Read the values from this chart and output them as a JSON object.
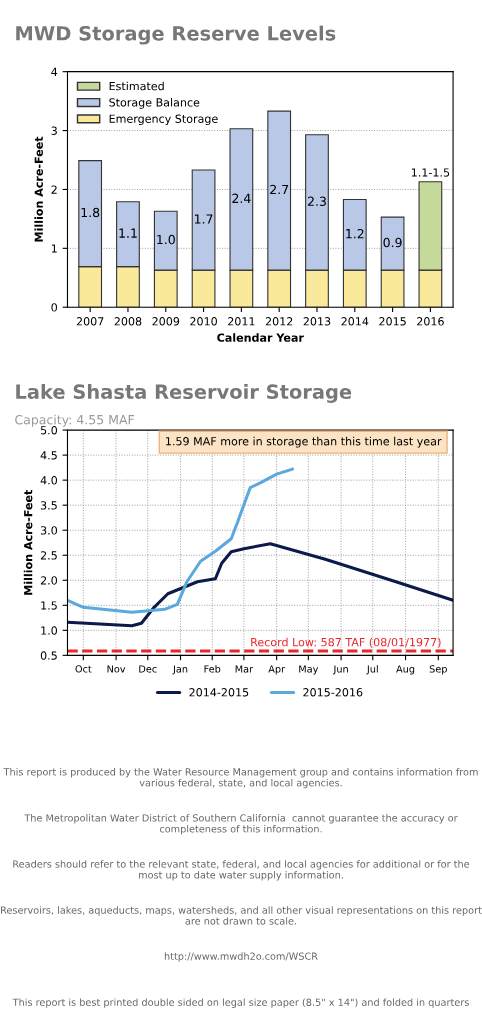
{
  "chart_data": [
    {
      "type": "bar",
      "title": "MWD Storage Reserve Levels",
      "xlabel": "Calendar Year",
      "ylabel": "Million Acre-Feet",
      "stacked": true,
      "categories": [
        "2007",
        "2008",
        "2009",
        "2010",
        "2011",
        "2012",
        "2013",
        "2014",
        "2015",
        "2016"
      ],
      "series": [
        {
          "name": "Emergency Storage",
          "color": "#fbe99b",
          "values": [
            0.69,
            0.69,
            0.63,
            0.63,
            0.63,
            0.63,
            0.63,
            0.63,
            0.63,
            0.63
          ]
        },
        {
          "name": "Storage Balance",
          "color": "#b8c8e6",
          "values": [
            1.8,
            1.1,
            1.0,
            1.7,
            2.4,
            2.7,
            2.3,
            1.2,
            0.9,
            null
          ],
          "value_labels": [
            "1.8",
            "1.1",
            "1.0",
            "1.7",
            "2.4",
            "2.7",
            "2.3",
            "1.2",
            "0.9",
            null
          ]
        },
        {
          "name": "Estimated",
          "color": "#c4d99a",
          "values": [
            null,
            null,
            null,
            null,
            null,
            null,
            null,
            null,
            null,
            1.5
          ],
          "value_labels": [
            null,
            null,
            null,
            null,
            null,
            null,
            null,
            null,
            null,
            "1.1-1.5"
          ]
        }
      ],
      "ylim": [
        0,
        4
      ],
      "yticks": [
        0,
        1,
        2,
        3,
        4
      ],
      "grid": "y",
      "legend": "top left"
    },
    {
      "type": "line",
      "title": "Lake Shasta Reservoir Storage",
      "subtitle": "Capacity: 4.55 MAF",
      "ylabel": "Million Acre-Feet",
      "annotations": [
        "1.59 MAF more in storage than this time last year"
      ],
      "series": [
        {
          "name": "2014-2015",
          "color": "#0b1a4a",
          "x": [
            "2015-10-01",
            "2015-12-01",
            "2015-12-10",
            "2015-12-22",
            "2016-01-04",
            "2016-02-01",
            "2016-02-18",
            "2016-02-24",
            "2016-03-04",
            "2016-03-16",
            "2016-04-10",
            "2016-06-01",
            "2016-08-01",
            "2016-09-30"
          ],
          "values": [
            1.16,
            1.09,
            1.14,
            1.46,
            1.73,
            1.97,
            2.03,
            2.34,
            2.57,
            2.63,
            2.73,
            2.42,
            2.01,
            1.6
          ]
        },
        {
          "name": "2015-2016",
          "color": "#5aa8dc",
          "x": [
            "2015-10-01",
            "2015-10-16",
            "2015-12-01",
            "2016-01-01",
            "2016-01-13",
            "2016-01-22",
            "2016-02-04",
            "2016-02-18",
            "2016-03-04",
            "2016-03-10",
            "2016-03-16",
            "2016-03-22",
            "2016-04-01",
            "2016-04-16",
            "2016-05-01"
          ],
          "values": [
            1.6,
            1.46,
            1.36,
            1.42,
            1.52,
            1.97,
            2.38,
            2.58,
            2.83,
            3.16,
            3.51,
            3.85,
            3.95,
            4.12,
            4.22
          ]
        }
      ],
      "xlim": [
        "2015-10-01",
        "2016-09-30"
      ],
      "xticks": [
        {
          "value": "2015-10-16",
          "label": "Oct"
        },
        {
          "value": "2015-11-16",
          "label": "Nov"
        },
        {
          "value": "2015-12-16",
          "label": "Dec"
        },
        {
          "value": "2016-01-16",
          "label": "Jan"
        },
        {
          "value": "2016-02-15",
          "label": "Feb"
        },
        {
          "value": "2016-03-16",
          "label": "Mar"
        },
        {
          "value": "2016-04-16",
          "label": "Apr"
        },
        {
          "value": "2016-05-16",
          "label": "May"
        },
        {
          "value": "2016-06-16",
          "label": "Jun"
        },
        {
          "value": "2016-07-16",
          "label": "Jul"
        },
        {
          "value": "2016-08-16",
          "label": "Aug"
        },
        {
          "value": "2016-09-16",
          "label": "Sep"
        }
      ],
      "ylim": [
        0.5,
        5.0
      ],
      "yticks": [
        {
          "value": 0.5,
          "label": "0.5"
        },
        {
          "value": 1,
          "label": "1.0"
        },
        {
          "value": 1.5,
          "label": "1.5"
        },
        {
          "value": 2,
          "label": "2.0"
        },
        {
          "value": 2.5,
          "label": "2.5"
        },
        {
          "value": 3,
          "label": "3.0"
        },
        {
          "value": 3.5,
          "label": "3.5"
        },
        {
          "value": 4,
          "label": "4.0"
        },
        {
          "value": 4.5,
          "label": "4.5"
        },
        {
          "value": 5,
          "label": "5.0"
        }
      ],
      "ref_lines": [
        {
          "axis": "y",
          "value": 0.587,
          "label": "Record Low: 587 TAF (08/01/1977)",
          "color": "#e8262b",
          "line_style": "dashed"
        }
      ],
      "grid": true,
      "legend": "bottom"
    },
    {
      "type": "other",
      "annotations": [
        "This report is produced by the Water Resource Management group and contains information from various federal, state, and local agencies.",
        "The Metropolitan Water District of Southern California  cannot guarantee the accuracy or completeness of this information.",
        "Readers should refer to the relevant state, federal, and local agencies for additional or for the most up to date water supply information.",
        "Reservoirs, lakes, aqueducts, maps, watersheds, and all other visual representations on this report are not drawn to scale.",
        "http://www.mwdh2o.com/WSCR",
        "This report is best printed double sided on legal size paper (8.5\" x 14\") and folded in quarters"
      ]
    }
  ]
}
